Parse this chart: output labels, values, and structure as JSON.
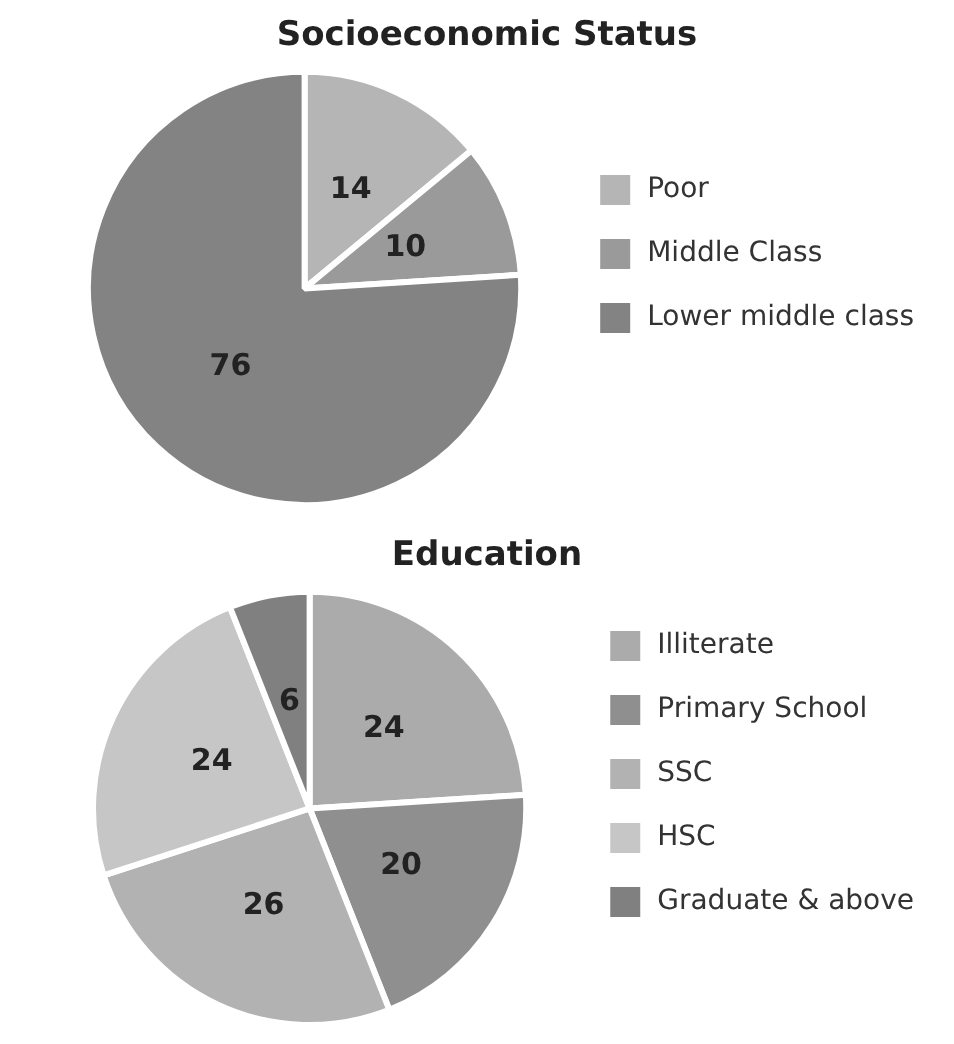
{
  "chart_data": [
    {
      "type": "pie",
      "title": "Socioeconomic Status",
      "categories": [
        "Poor",
        "Middle Class",
        "Lower middle class"
      ],
      "values": [
        14,
        10,
        76
      ],
      "colors": [
        "#b5b5b5",
        "#9a9a9a",
        "#838383"
      ],
      "data_labels": true,
      "legend": "right"
    },
    {
      "type": "pie",
      "title": "Education",
      "categories": [
        "Illiterate",
        "Primary School",
        "SSC",
        "HSC",
        "Graduate & above"
      ],
      "values": [
        24,
        20,
        26,
        24,
        6
      ],
      "colors": [
        "#ababab",
        "#8f8f8f",
        "#b2b2b2",
        "#c6c6c6",
        "#808080"
      ],
      "data_labels": true,
      "legend": "right"
    }
  ]
}
